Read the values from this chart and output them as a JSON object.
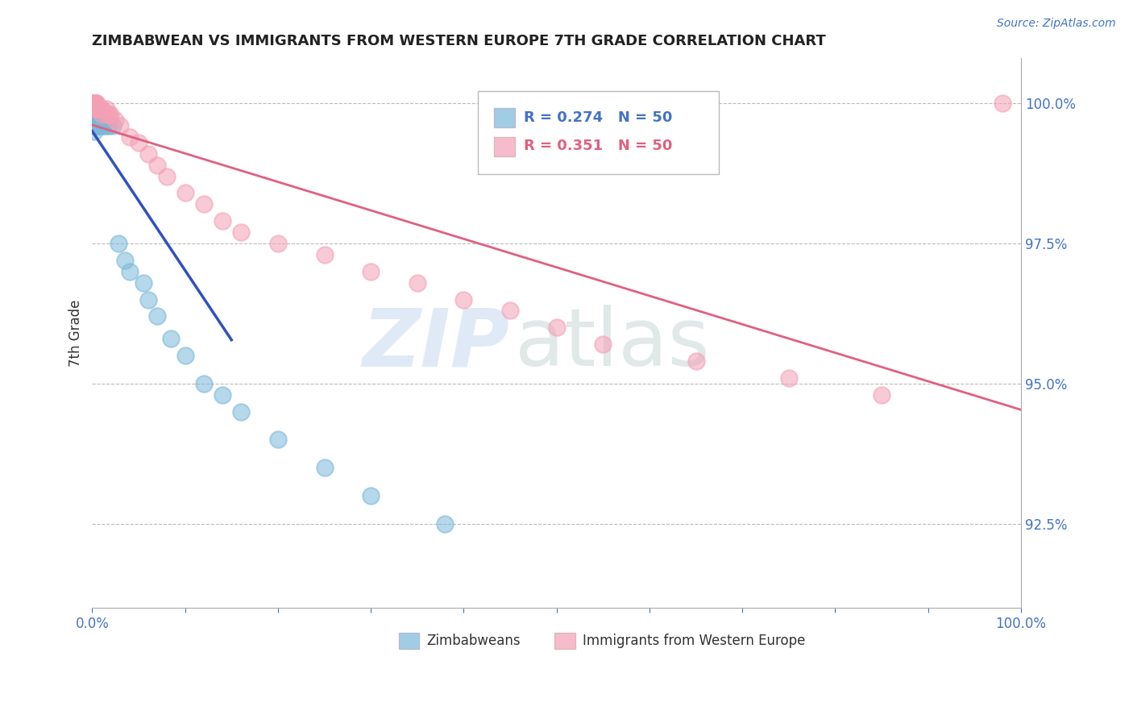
{
  "title": "ZIMBABWEAN VS IMMIGRANTS FROM WESTERN EUROPE 7TH GRADE CORRELATION CHART",
  "source": "Source: ZipAtlas.com",
  "ylabel": "7th Grade",
  "ylabel_right_labels": [
    "100.0%",
    "97.5%",
    "95.0%",
    "92.5%"
  ],
  "ylabel_right_values": [
    1.0,
    0.975,
    0.95,
    0.925
  ],
  "xmin": 0.0,
  "xmax": 1.0,
  "ymin": 0.91,
  "ymax": 1.008,
  "R_blue": 0.274,
  "N_blue": 50,
  "R_pink": 0.351,
  "N_pink": 50,
  "blue_color": "#7ab8d9",
  "pink_color": "#f4a0b5",
  "blue_line_color": "#3050c0",
  "pink_line_color": "#e06080",
  "legend_label_blue": "Zimbabweans",
  "legend_label_pink": "Immigrants from Western Europe",
  "blue_x": [
    0.002,
    0.002,
    0.002,
    0.002,
    0.002,
    0.002,
    0.002,
    0.002,
    0.002,
    0.002,
    0.003,
    0.003,
    0.003,
    0.003,
    0.003,
    0.003,
    0.003,
    0.004,
    0.004,
    0.004,
    0.004,
    0.005,
    0.005,
    0.005,
    0.006,
    0.006,
    0.007,
    0.007,
    0.008,
    0.01,
    0.01,
    0.012,
    0.015,
    0.018,
    0.022,
    0.028,
    0.035,
    0.04,
    0.055,
    0.06,
    0.07,
    0.085,
    0.1,
    0.12,
    0.14,
    0.16,
    0.2,
    0.25,
    0.3,
    0.38
  ],
  "blue_y": [
    1.0,
    1.0,
    0.999,
    0.999,
    0.998,
    0.998,
    0.997,
    0.997,
    0.996,
    0.995,
    0.999,
    0.999,
    0.998,
    0.998,
    0.997,
    0.996,
    0.996,
    0.999,
    0.998,
    0.997,
    0.997,
    0.998,
    0.997,
    0.996,
    0.997,
    0.996,
    0.997,
    0.996,
    0.996,
    0.997,
    0.996,
    0.996,
    0.996,
    0.996,
    0.996,
    0.975,
    0.972,
    0.97,
    0.968,
    0.965,
    0.962,
    0.958,
    0.955,
    0.95,
    0.948,
    0.945,
    0.94,
    0.935,
    0.93,
    0.925
  ],
  "pink_x": [
    0.002,
    0.002,
    0.002,
    0.002,
    0.002,
    0.002,
    0.002,
    0.002,
    0.003,
    0.003,
    0.003,
    0.003,
    0.003,
    0.004,
    0.004,
    0.005,
    0.005,
    0.006,
    0.007,
    0.008,
    0.009,
    0.01,
    0.011,
    0.015,
    0.016,
    0.018,
    0.02,
    0.025,
    0.03,
    0.04,
    0.05,
    0.06,
    0.07,
    0.08,
    0.1,
    0.12,
    0.14,
    0.16,
    0.2,
    0.25,
    0.3,
    0.35,
    0.4,
    0.45,
    0.5,
    0.55,
    0.65,
    0.75,
    0.85,
    0.98
  ],
  "pink_y": [
    1.0,
    1.0,
    1.0,
    1.0,
    1.0,
    1.0,
    1.0,
    1.0,
    1.0,
    1.0,
    1.0,
    1.0,
    1.0,
    1.0,
    0.999,
    1.0,
    0.999,
    0.999,
    0.999,
    0.999,
    0.999,
    0.999,
    0.998,
    0.999,
    0.998,
    0.998,
    0.998,
    0.997,
    0.996,
    0.994,
    0.993,
    0.991,
    0.989,
    0.987,
    0.984,
    0.982,
    0.979,
    0.977,
    0.975,
    0.973,
    0.97,
    0.968,
    0.965,
    0.963,
    0.96,
    0.957,
    0.954,
    0.951,
    0.948,
    1.0
  ]
}
